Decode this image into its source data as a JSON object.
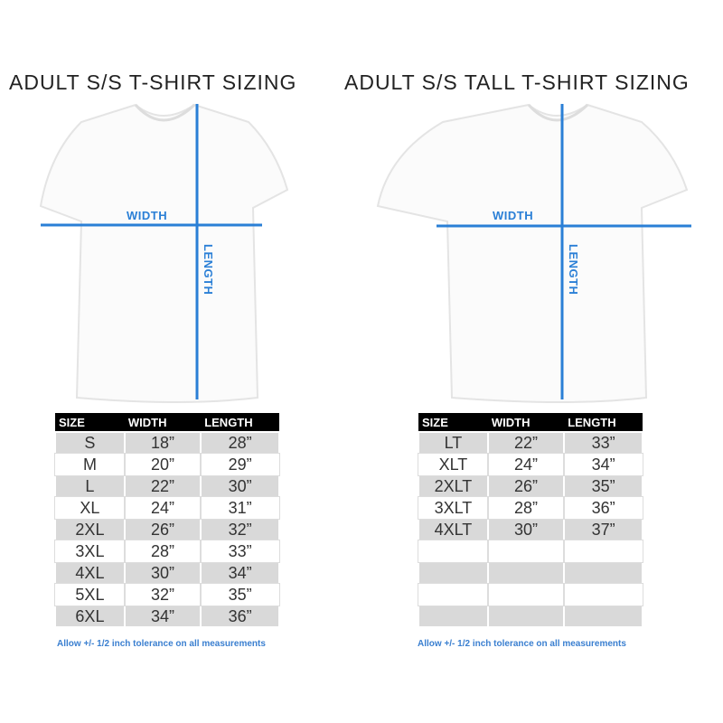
{
  "charts": [
    {
      "title": "ADULT S/S T-SHIRT SIZING",
      "width_label": "WIDTH",
      "length_label": "LENGTH",
      "headers": [
        "SIZE",
        "WIDTH",
        "LENGTH"
      ],
      "rows": [
        [
          "S",
          "18”",
          "28”"
        ],
        [
          "M",
          "20”",
          "29”"
        ],
        [
          "L",
          "22”",
          "30”"
        ],
        [
          "XL",
          "24”",
          "31”"
        ],
        [
          "2XL",
          "26”",
          "32”"
        ],
        [
          "3XL",
          "28”",
          "33”"
        ],
        [
          "4XL",
          "30”",
          "34”"
        ],
        [
          "5XL",
          "32”",
          "35”"
        ],
        [
          "6XL",
          "34”",
          "36”"
        ]
      ],
      "note": "Allow +/- 1/2 inch tolerance on all measurements"
    },
    {
      "title": "ADULT S/S TALL T-SHIRT SIZING",
      "width_label": "WIDTH",
      "length_label": "LENGTH",
      "headers": [
        "SIZE",
        "WIDTH",
        "LENGTH"
      ],
      "rows": [
        [
          "LT",
          "22”",
          "33”"
        ],
        [
          "XLT",
          "24”",
          "34”"
        ],
        [
          "2XLT",
          "26”",
          "35”"
        ],
        [
          "3XLT",
          "28”",
          "36”"
        ],
        [
          "4XLT",
          "30”",
          "37”"
        ],
        [
          "",
          "",
          ""
        ],
        [
          "",
          "",
          ""
        ],
        [
          "",
          "",
          ""
        ],
        [
          "",
          "",
          ""
        ]
      ],
      "note": "Allow +/- 1/2 inch tolerance on all measurements"
    }
  ],
  "colors": {
    "measure_line": "#2a7fd6",
    "header_bg": "#000000",
    "stripe": "#d9d9d9"
  }
}
